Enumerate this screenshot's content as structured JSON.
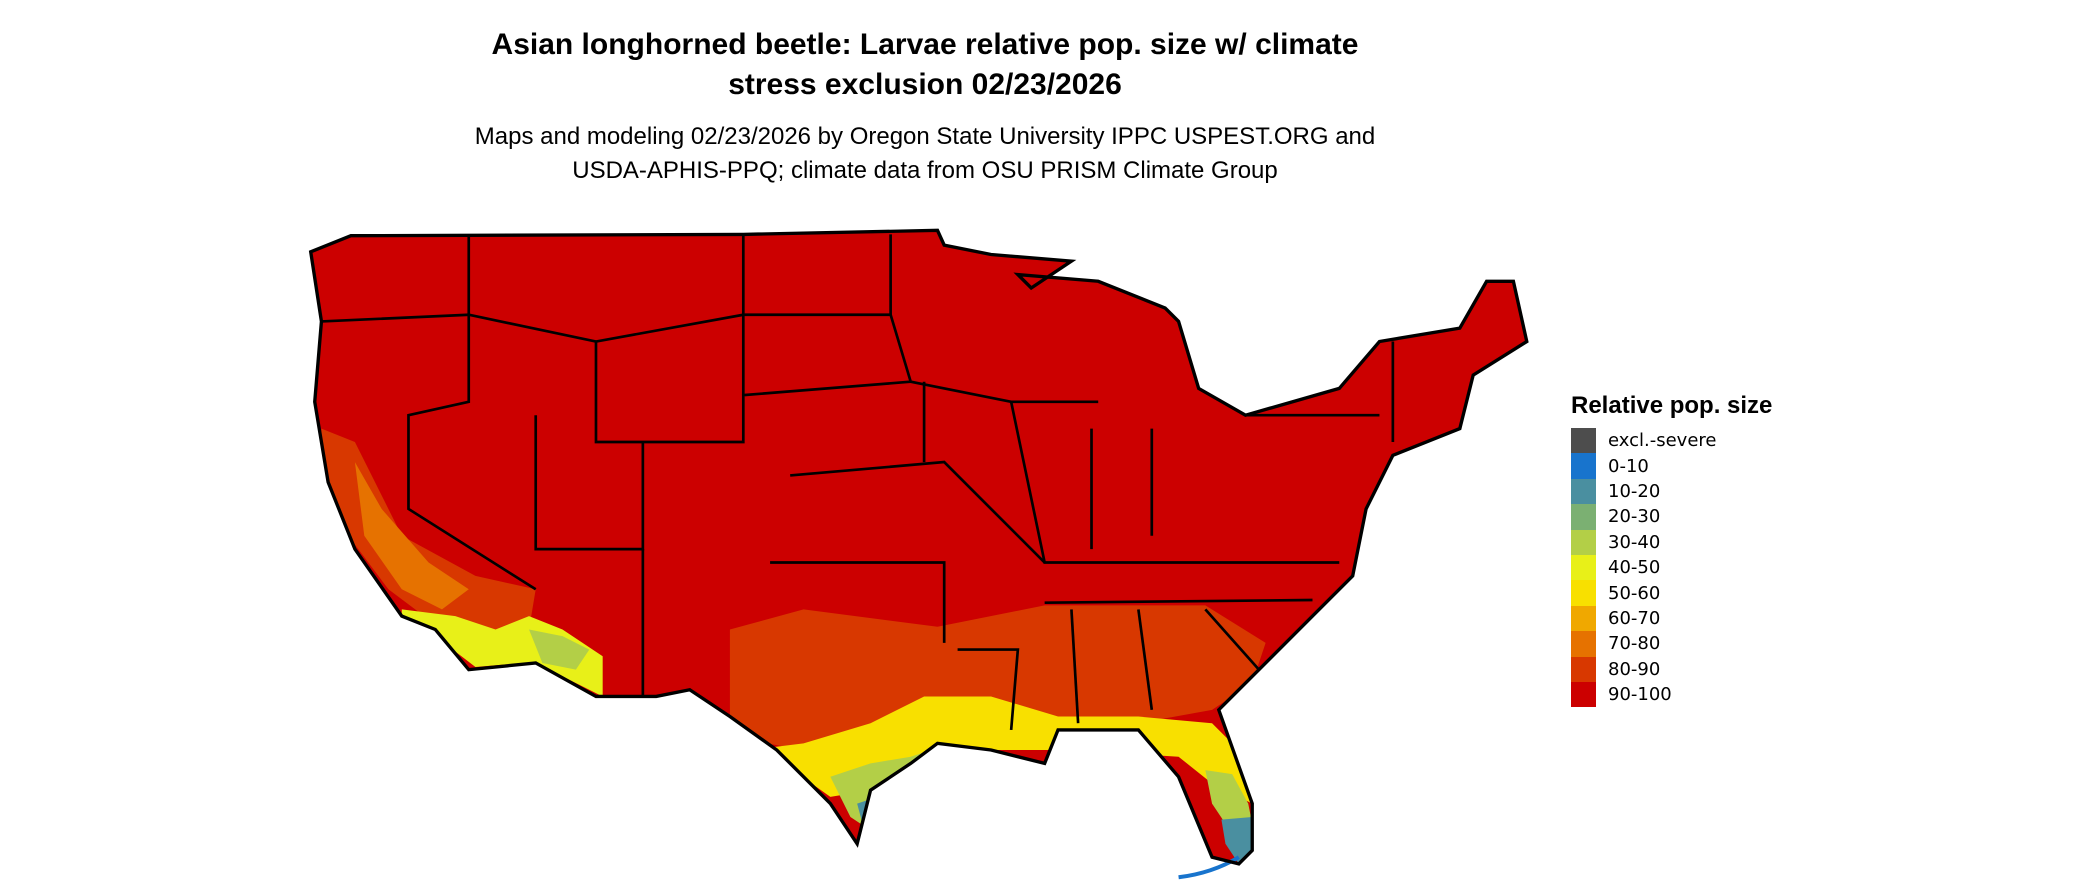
{
  "title": "Asian longhorned beetle: Larvae relative pop. size w/ climate stress exclusion 02/23/2026",
  "title_lines": [
    "Asian longhorned beetle: Larvae relative pop. size w/ climate",
    "stress exclusion 02/23/2026"
  ],
  "subtitle_lines": [
    "Maps and modeling 02/23/2026 by Oregon State University IPPC USPEST.ORG and",
    "USDA-APHIS-PPQ; climate data from OSU PRISM Climate Group"
  ],
  "map": {
    "region": "Contiguous United States",
    "dominant_class": "90-100",
    "state_borders": true
  },
  "legend": {
    "title": "Relative pop. size",
    "items": [
      {
        "label": "excl.-severe",
        "color": "#4d4d4d"
      },
      {
        "label": "0-10",
        "color": "#1874cd"
      },
      {
        "label": "10-20",
        "color": "#4a8fa0"
      },
      {
        "label": "20-30",
        "color": "#7bb072"
      },
      {
        "label": "30-40",
        "color": "#b3cf47"
      },
      {
        "label": "40-50",
        "color": "#e8f018"
      },
      {
        "label": "50-60",
        "color": "#f8e000"
      },
      {
        "label": "60-70",
        "color": "#f0a800"
      },
      {
        "label": "70-80",
        "color": "#e67200"
      },
      {
        "label": "80-90",
        "color": "#d83800"
      },
      {
        "label": "90-100",
        "color": "#cc0000"
      }
    ]
  }
}
